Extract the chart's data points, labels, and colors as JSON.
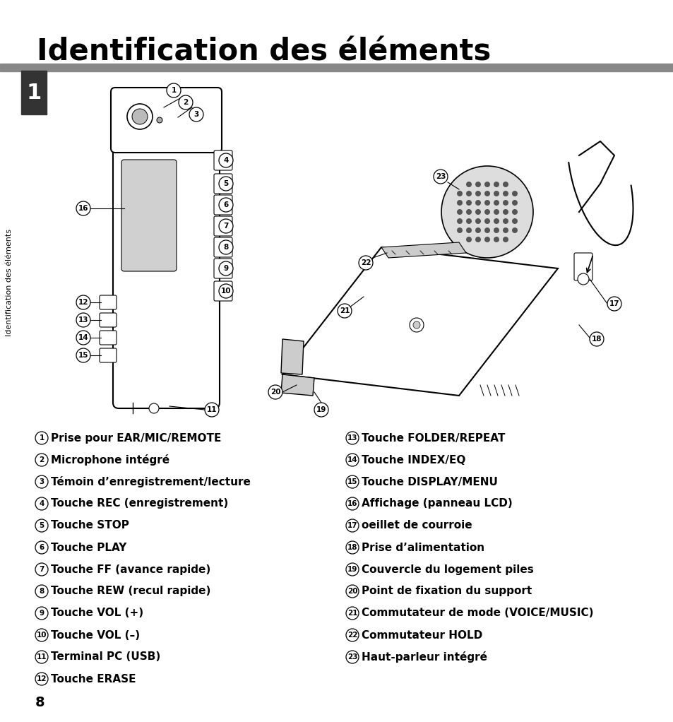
{
  "title": "Identification des éléments",
  "title_fontsize": 30,
  "gray_bar_color": "#888888",
  "sidebar_text": "Identification des éléments",
  "chapter_num": "1",
  "page_num": "8",
  "left_items": [
    [
      1,
      "Prise pour EAR/MIC/REMOTE"
    ],
    [
      2,
      "Microphone intégré"
    ],
    [
      3,
      "Témoin d’enregistrement/lecture"
    ],
    [
      4,
      "Touche REC (enregistrement)"
    ],
    [
      5,
      "Touche STOP"
    ],
    [
      6,
      "Touche PLAY"
    ],
    [
      7,
      "Touche FF (avance rapide)"
    ],
    [
      8,
      "Touche REW (recul rapide)"
    ],
    [
      9,
      "Touche VOL (+)"
    ],
    [
      10,
      "Touche VOL (–)"
    ],
    [
      11,
      "Terminal PC (USB)"
    ],
    [
      12,
      "Touche ERASE"
    ]
  ],
  "right_items": [
    [
      13,
      "Touche FOLDER/REPEAT"
    ],
    [
      14,
      "Touche INDEX/EQ"
    ],
    [
      15,
      "Touche DISPLAY/MENU"
    ],
    [
      16,
      "Affichage (panneau LCD)"
    ],
    [
      17,
      "oeillet de courroie"
    ],
    [
      18,
      "Prise d’alimentation"
    ],
    [
      19,
      "Couvercle du logement piles"
    ],
    [
      20,
      "Point de fixation du support"
    ],
    [
      21,
      "Commutateur de mode (VOICE/MUSIC)"
    ],
    [
      22,
      "Commutateur HOLD"
    ],
    [
      23,
      "Haut-parleur intégré"
    ]
  ],
  "bg_color": "#ffffff",
  "text_color": "#000000"
}
